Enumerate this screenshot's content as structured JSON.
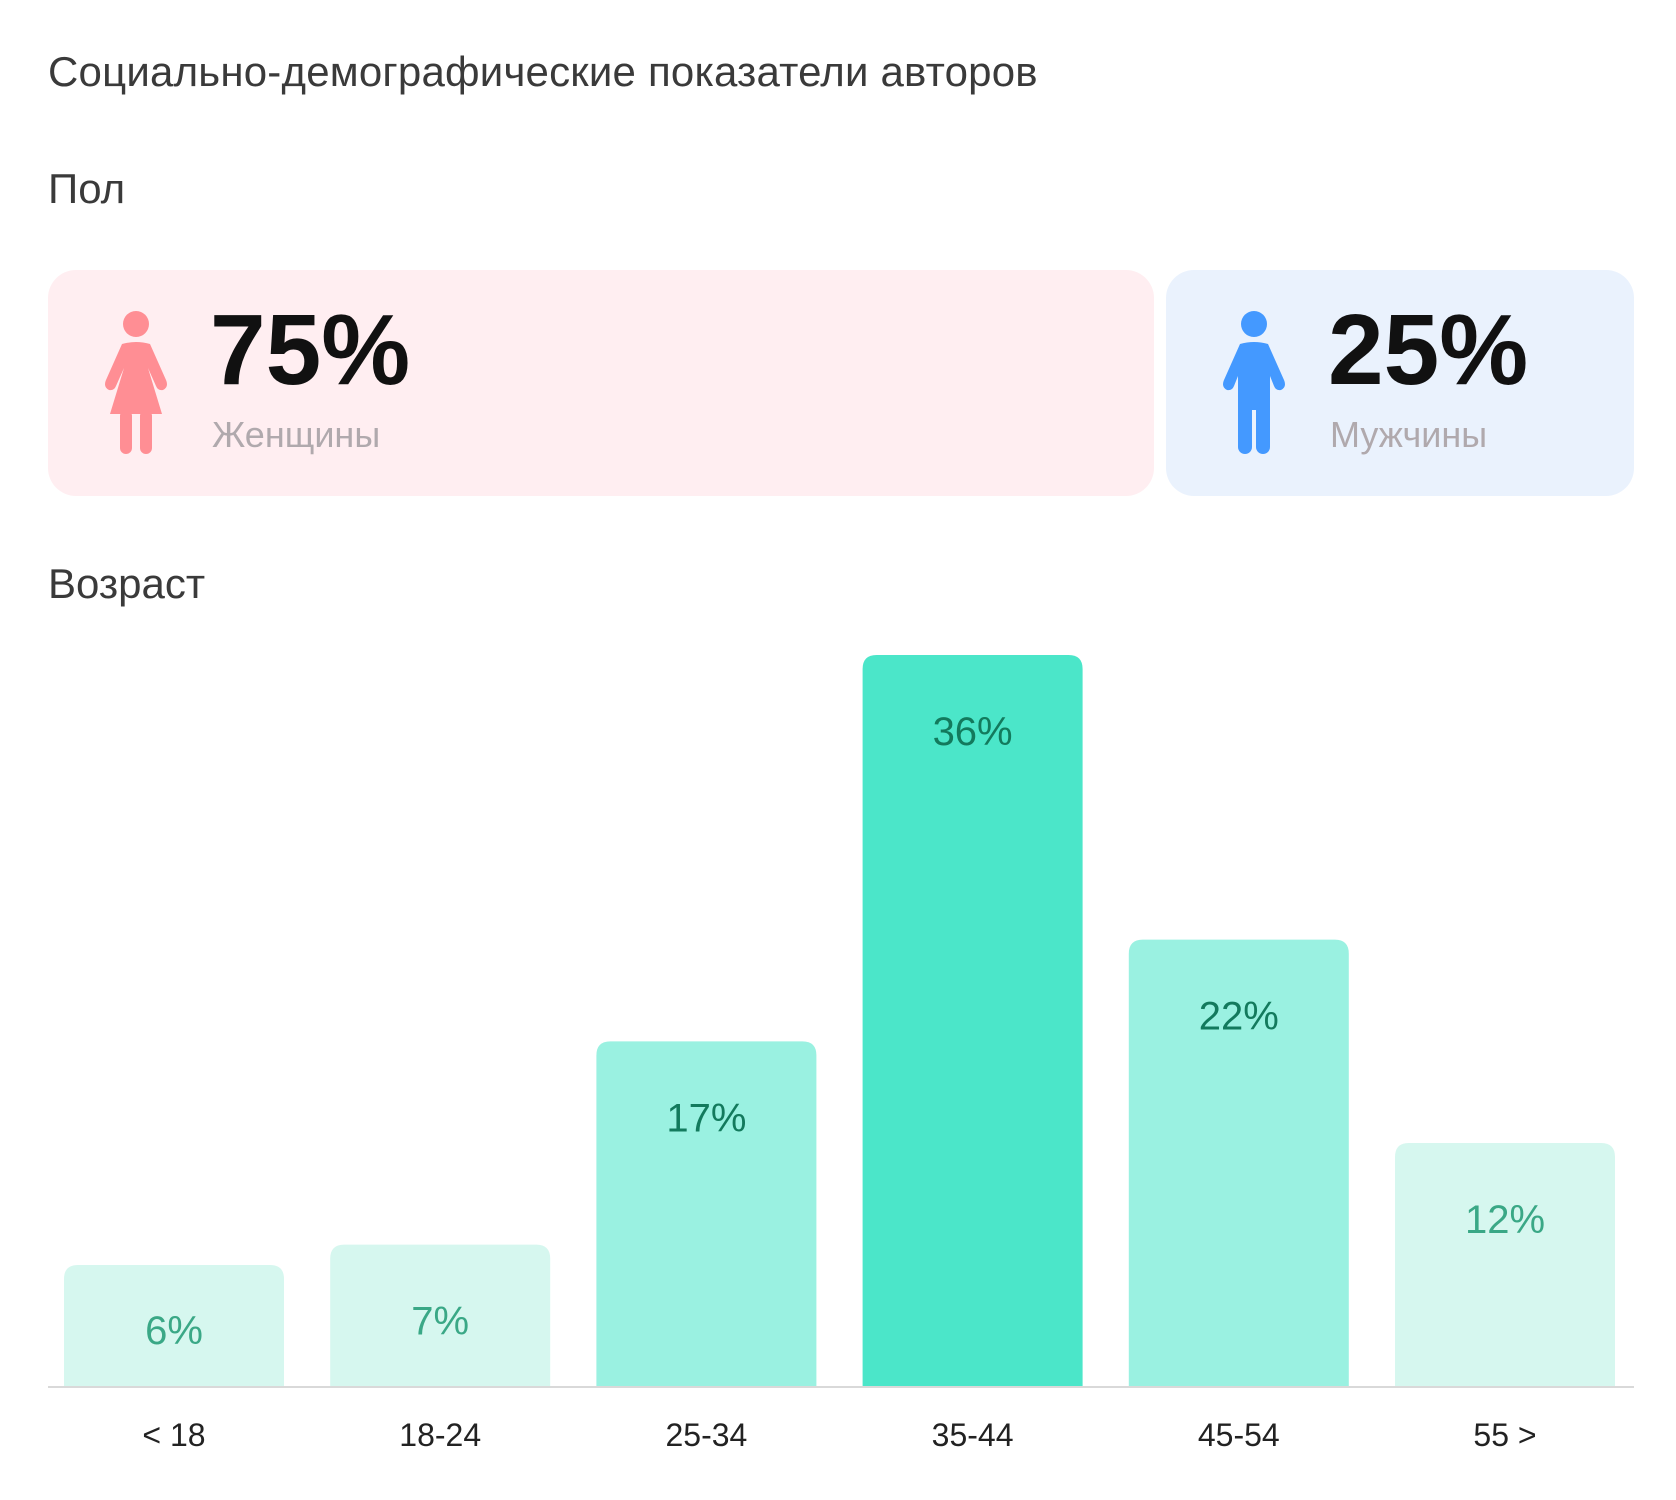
{
  "page": {
    "title": "Социально-демографические показатели авторов"
  },
  "gender": {
    "section_title": "Пол",
    "female": {
      "value": "75%",
      "label": "Женщины",
      "share": 75,
      "icon": "female-person-icon",
      "color": "#ff8e94",
      "background": "#ffeef1"
    },
    "male": {
      "value": "25%",
      "label": "Мужчины",
      "share": 25,
      "icon": "male-person-icon",
      "color": "#4499ff",
      "background": "#eaf2fd"
    }
  },
  "age": {
    "section_title": "Возраст"
  },
  "chart_data": {
    "type": "bar",
    "title": "Возраст",
    "xlabel": "",
    "ylabel": "",
    "ylim": [
      0,
      36
    ],
    "categories": [
      "< 18",
      "18-24",
      "25-34",
      "35-44",
      "45-54",
      "55 >"
    ],
    "values": [
      6,
      7,
      17,
      36,
      22,
      12
    ],
    "value_labels": [
      "6%",
      "7%",
      "17%",
      "36%",
      "22%",
      "12%"
    ],
    "bar_colors": [
      "#d6f7ef",
      "#d6f7ef",
      "#9af1e1",
      "#4be6c9",
      "#9af1e1",
      "#d6f7ef"
    ],
    "label_colors": [
      "#3aa886",
      "#3aa886",
      "#137a5d",
      "#137a5d",
      "#137a5d",
      "#3aa886"
    ],
    "grid": false,
    "legend": "none"
  }
}
